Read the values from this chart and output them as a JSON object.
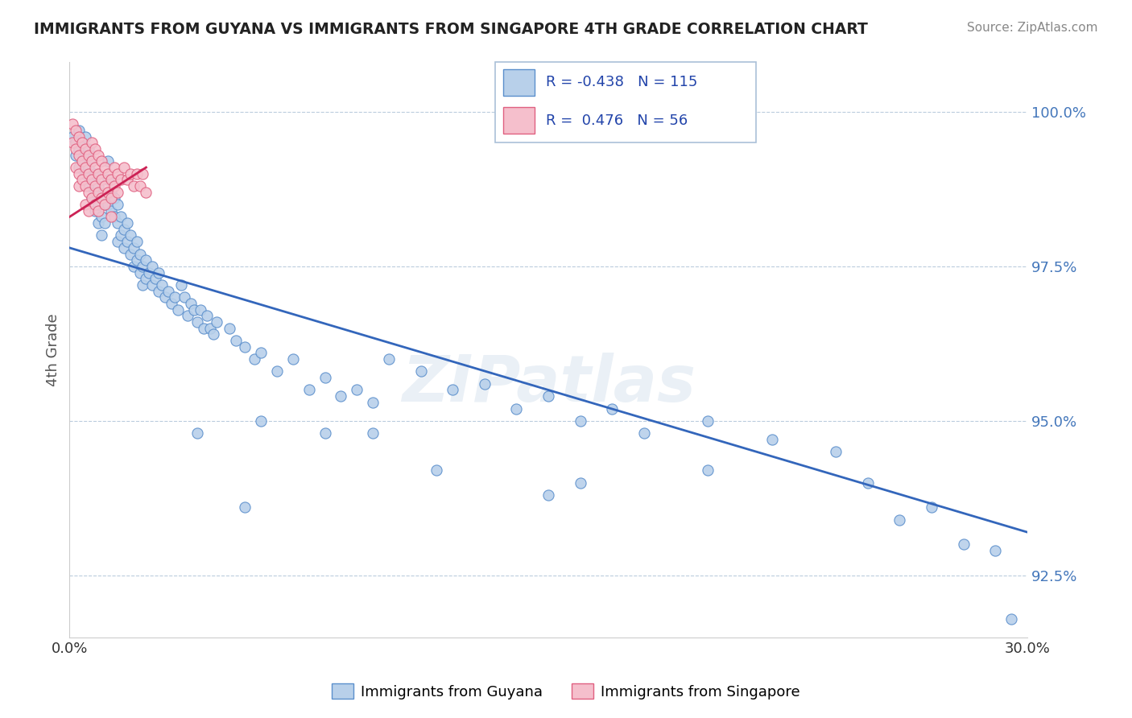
{
  "title": "IMMIGRANTS FROM GUYANA VS IMMIGRANTS FROM SINGAPORE 4TH GRADE CORRELATION CHART",
  "source": "Source: ZipAtlas.com",
  "ylabel": "4th Grade",
  "x_min": 0.0,
  "x_max": 0.3,
  "y_min": 91.5,
  "y_max": 100.8,
  "y_ticks": [
    92.5,
    95.0,
    97.5,
    100.0
  ],
  "x_ticks": [
    0.0,
    0.3
  ],
  "x_tick_labels": [
    "0.0%",
    "30.0%"
  ],
  "y_tick_labels": [
    "92.5%",
    "95.0%",
    "97.5%",
    "100.0%"
  ],
  "blue_color": "#b8d0ea",
  "blue_edge_color": "#5b8fcc",
  "pink_color": "#f5bfcc",
  "pink_edge_color": "#e06080",
  "trend_blue_color": "#3366bb",
  "trend_pink_color": "#cc2255",
  "legend_r_blue": "-0.438",
  "legend_n_blue": "115",
  "legend_r_pink": "0.476",
  "legend_n_pink": "56",
  "watermark": "ZIPatlas",
  "blue_scatter": [
    [
      0.001,
      99.6
    ],
    [
      0.002,
      99.5
    ],
    [
      0.002,
      99.3
    ],
    [
      0.003,
      99.7
    ],
    [
      0.003,
      99.4
    ],
    [
      0.003,
      99.1
    ],
    [
      0.004,
      99.5
    ],
    [
      0.004,
      99.2
    ],
    [
      0.005,
      99.6
    ],
    [
      0.005,
      99.3
    ],
    [
      0.005,
      99.0
    ],
    [
      0.006,
      99.4
    ],
    [
      0.006,
      99.1
    ],
    [
      0.006,
      98.8
    ],
    [
      0.007,
      99.2
    ],
    [
      0.007,
      98.9
    ],
    [
      0.007,
      98.6
    ],
    [
      0.008,
      99.0
    ],
    [
      0.008,
      98.7
    ],
    [
      0.008,
      98.4
    ],
    [
      0.009,
      98.8
    ],
    [
      0.009,
      98.5
    ],
    [
      0.009,
      98.2
    ],
    [
      0.01,
      98.6
    ],
    [
      0.01,
      98.3
    ],
    [
      0.01,
      98.0
    ],
    [
      0.011,
      98.5
    ],
    [
      0.011,
      98.2
    ],
    [
      0.012,
      99.2
    ],
    [
      0.012,
      98.9
    ],
    [
      0.012,
      98.5
    ],
    [
      0.013,
      98.7
    ],
    [
      0.013,
      98.4
    ],
    [
      0.014,
      98.6
    ],
    [
      0.014,
      98.3
    ],
    [
      0.015,
      98.5
    ],
    [
      0.015,
      98.2
    ],
    [
      0.015,
      97.9
    ],
    [
      0.016,
      98.3
    ],
    [
      0.016,
      98.0
    ],
    [
      0.017,
      98.1
    ],
    [
      0.017,
      97.8
    ],
    [
      0.018,
      98.2
    ],
    [
      0.018,
      97.9
    ],
    [
      0.019,
      98.0
    ],
    [
      0.019,
      97.7
    ],
    [
      0.02,
      97.8
    ],
    [
      0.02,
      97.5
    ],
    [
      0.021,
      97.9
    ],
    [
      0.021,
      97.6
    ],
    [
      0.022,
      97.7
    ],
    [
      0.022,
      97.4
    ],
    [
      0.023,
      97.5
    ],
    [
      0.023,
      97.2
    ],
    [
      0.024,
      97.6
    ],
    [
      0.024,
      97.3
    ],
    [
      0.025,
      97.4
    ],
    [
      0.026,
      97.5
    ],
    [
      0.026,
      97.2
    ],
    [
      0.027,
      97.3
    ],
    [
      0.028,
      97.4
    ],
    [
      0.028,
      97.1
    ],
    [
      0.029,
      97.2
    ],
    [
      0.03,
      97.0
    ],
    [
      0.031,
      97.1
    ],
    [
      0.032,
      96.9
    ],
    [
      0.033,
      97.0
    ],
    [
      0.034,
      96.8
    ],
    [
      0.035,
      97.2
    ],
    [
      0.036,
      97.0
    ],
    [
      0.037,
      96.7
    ],
    [
      0.038,
      96.9
    ],
    [
      0.039,
      96.8
    ],
    [
      0.04,
      96.6
    ],
    [
      0.041,
      96.8
    ],
    [
      0.042,
      96.5
    ],
    [
      0.043,
      96.7
    ],
    [
      0.044,
      96.5
    ],
    [
      0.045,
      96.4
    ],
    [
      0.046,
      96.6
    ],
    [
      0.05,
      96.5
    ],
    [
      0.052,
      96.3
    ],
    [
      0.055,
      96.2
    ],
    [
      0.058,
      96.0
    ],
    [
      0.06,
      96.1
    ],
    [
      0.065,
      95.8
    ],
    [
      0.07,
      96.0
    ],
    [
      0.075,
      95.5
    ],
    [
      0.08,
      95.7
    ],
    [
      0.085,
      95.4
    ],
    [
      0.09,
      95.5
    ],
    [
      0.095,
      95.3
    ],
    [
      0.1,
      96.0
    ],
    [
      0.11,
      95.8
    ],
    [
      0.12,
      95.5
    ],
    [
      0.13,
      95.6
    ],
    [
      0.14,
      95.2
    ],
    [
      0.15,
      95.4
    ],
    [
      0.16,
      95.0
    ],
    [
      0.17,
      95.2
    ],
    [
      0.18,
      94.8
    ],
    [
      0.2,
      95.0
    ],
    [
      0.22,
      94.7
    ],
    [
      0.24,
      94.5
    ],
    [
      0.055,
      93.6
    ],
    [
      0.095,
      94.8
    ],
    [
      0.115,
      94.2
    ],
    [
      0.15,
      93.8
    ],
    [
      0.16,
      94.0
    ],
    [
      0.2,
      94.2
    ],
    [
      0.25,
      94.0
    ],
    [
      0.26,
      93.4
    ],
    [
      0.27,
      93.6
    ],
    [
      0.28,
      93.0
    ],
    [
      0.29,
      92.9
    ],
    [
      0.295,
      91.8
    ],
    [
      0.04,
      94.8
    ],
    [
      0.06,
      95.0
    ],
    [
      0.08,
      94.8
    ]
  ],
  "pink_scatter": [
    [
      0.001,
      99.8
    ],
    [
      0.001,
      99.5
    ],
    [
      0.002,
      99.7
    ],
    [
      0.002,
      99.4
    ],
    [
      0.002,
      99.1
    ],
    [
      0.003,
      99.6
    ],
    [
      0.003,
      99.3
    ],
    [
      0.003,
      99.0
    ],
    [
      0.003,
      98.8
    ],
    [
      0.004,
      99.5
    ],
    [
      0.004,
      99.2
    ],
    [
      0.004,
      98.9
    ],
    [
      0.005,
      99.4
    ],
    [
      0.005,
      99.1
    ],
    [
      0.005,
      98.8
    ],
    [
      0.005,
      98.5
    ],
    [
      0.006,
      99.3
    ],
    [
      0.006,
      99.0
    ],
    [
      0.006,
      98.7
    ],
    [
      0.006,
      98.4
    ],
    [
      0.007,
      99.5
    ],
    [
      0.007,
      99.2
    ],
    [
      0.007,
      98.9
    ],
    [
      0.007,
      98.6
    ],
    [
      0.008,
      99.4
    ],
    [
      0.008,
      99.1
    ],
    [
      0.008,
      98.8
    ],
    [
      0.008,
      98.5
    ],
    [
      0.009,
      99.3
    ],
    [
      0.009,
      99.0
    ],
    [
      0.009,
      98.7
    ],
    [
      0.009,
      98.4
    ],
    [
      0.01,
      99.2
    ],
    [
      0.01,
      98.9
    ],
    [
      0.01,
      98.6
    ],
    [
      0.011,
      99.1
    ],
    [
      0.011,
      98.8
    ],
    [
      0.011,
      98.5
    ],
    [
      0.012,
      99.0
    ],
    [
      0.012,
      98.7
    ],
    [
      0.013,
      98.9
    ],
    [
      0.013,
      98.6
    ],
    [
      0.013,
      98.3
    ],
    [
      0.014,
      99.1
    ],
    [
      0.014,
      98.8
    ],
    [
      0.015,
      99.0
    ],
    [
      0.015,
      98.7
    ],
    [
      0.016,
      98.9
    ],
    [
      0.017,
      99.1
    ],
    [
      0.018,
      98.9
    ],
    [
      0.019,
      99.0
    ],
    [
      0.02,
      98.8
    ],
    [
      0.021,
      99.0
    ],
    [
      0.022,
      98.8
    ],
    [
      0.023,
      99.0
    ],
    [
      0.024,
      98.7
    ]
  ],
  "blue_trend_x": [
    0.0,
    0.3
  ],
  "blue_trend_y": [
    97.8,
    93.2
  ],
  "pink_trend_x": [
    0.0,
    0.024
  ],
  "pink_trend_y": [
    98.3,
    99.1
  ]
}
